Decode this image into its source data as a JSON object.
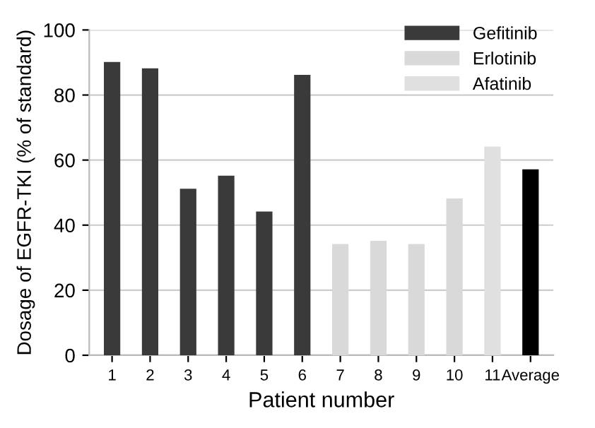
{
  "chart_data": {
    "type": "bar",
    "xlabel": "Patient number",
    "ylabel": "Dosage of EGFR-TKI (% of standard)",
    "categories": [
      "1",
      "2",
      "3",
      "4",
      "5",
      "6",
      "7",
      "8",
      "9",
      "10",
      "11",
      "Average"
    ],
    "series": [
      {
        "name": "Gefitinib",
        "color": "#3a3a3a",
        "values": [
          90,
          88,
          51,
          55,
          44,
          86,
          null,
          null,
          null,
          null,
          null,
          null
        ]
      },
      {
        "name": "Erlotinib",
        "color": "#d9d9d9",
        "values": [
          null,
          null,
          null,
          null,
          null,
          null,
          34,
          35,
          34,
          48,
          null,
          null
        ]
      },
      {
        "name": "Afatinib",
        "color": "#e0e0e0",
        "values": [
          null,
          null,
          null,
          null,
          null,
          null,
          null,
          null,
          null,
          null,
          64,
          null
        ]
      },
      {
        "color": "#000000",
        "values": [
          null,
          null,
          null,
          null,
          null,
          null,
          null,
          null,
          null,
          null,
          null,
          57
        ]
      }
    ],
    "ylim": [
      0,
      100
    ],
    "yticks": [
      0,
      20,
      40,
      60,
      80,
      100
    ],
    "grid": "y",
    "legend": "top right"
  }
}
